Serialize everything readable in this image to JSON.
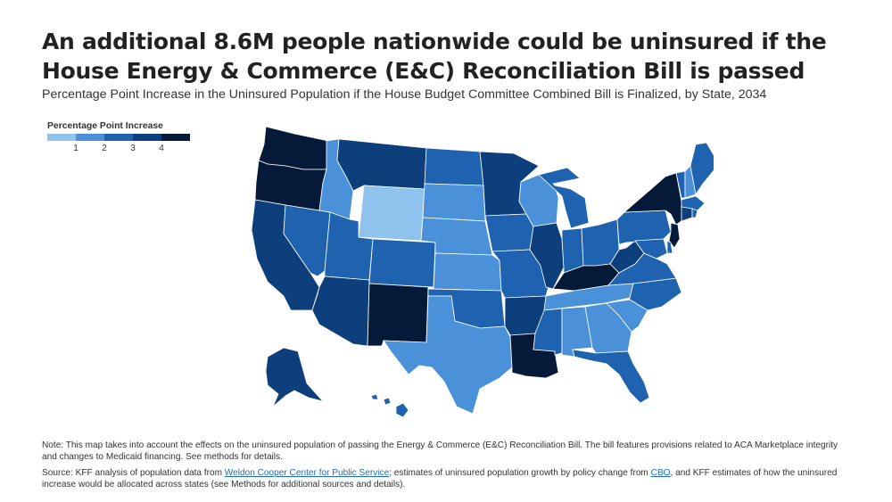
{
  "header": {
    "title": "An additional 8.6M people nationwide could be uninsured if the House Energy & Commerce (E&C) Reconciliation Bill is passed",
    "subtitle": "Percentage Point Increase in the Uninsured Population if the House Budget Committee Combined Bill is Finalized, by State, 2034"
  },
  "legend": {
    "title": "Percentage Point Increase",
    "ticks": [
      "1",
      "2",
      "3",
      "4"
    ],
    "colors": [
      "#8fc3ee",
      "#4a91d9",
      "#1f63b0",
      "#0d3f7c",
      "#041a38"
    ]
  },
  "map": {
    "state_levels": {
      "Washington": "darkest",
      "Oregon": "darkest",
      "California": "dark",
      "Nevada": "medium",
      "Idaho": "light",
      "Montana": "dark",
      "Wyoming": "lightest",
      "Utah": "medium",
      "Arizona": "dark",
      "Colorado": "medium",
      "New Mexico": "darkest",
      "North Dakota": "medium",
      "South Dakota": "light",
      "Nebraska": "light",
      "Kansas": "light",
      "Oklahoma": "medium",
      "Texas": "light",
      "Minnesota": "dark",
      "Iowa": "medium",
      "Missouri": "medium",
      "Arkansas": "dark",
      "Louisiana": "darkest",
      "Wisconsin": "light",
      "Illinois": "dark",
      "Michigan": "medium",
      "Indiana": "medium",
      "Ohio": "medium",
      "Kentucky": "darkest",
      "Tennessee": "light",
      "Mississippi": "medium",
      "Alabama": "light",
      "Georgia": "light",
      "Florida": "medium",
      "South Carolina": "light",
      "North Carolina": "medium",
      "Virginia": "medium",
      "West Virginia": "dark",
      "Pennsylvania": "medium",
      "New York": "darkest",
      "Vermont": "medium",
      "New Hampshire": "light",
      "Maine": "medium",
      "Massachusetts": "medium",
      "Connecticut": "dark",
      "New Jersey": "darkest",
      "Delaware": "medium",
      "Maryland": "medium",
      "Alaska": "dark",
      "Hawaii": "medium"
    }
  },
  "footer": {
    "note": "Note: This map takes into account the effects on the uninsured population of passing the Energy & Commerce (E&C) Reconciliation Bill. The bill features provisions related to ACA Marketplace integrity and changes to Medicaid financing. See methods for details.",
    "source_prefix": "Source: KFF analysis of population data from ",
    "source_link1": "Weldon Cooper Center for Public Service",
    "source_middle": "; estimates of uninsured population growth by policy change from ",
    "source_link2": "CBO",
    "source_suffix": ", and KFF estimates of how the uninsured increase would be allocated across states (see Methods for additional sources and details)."
  }
}
